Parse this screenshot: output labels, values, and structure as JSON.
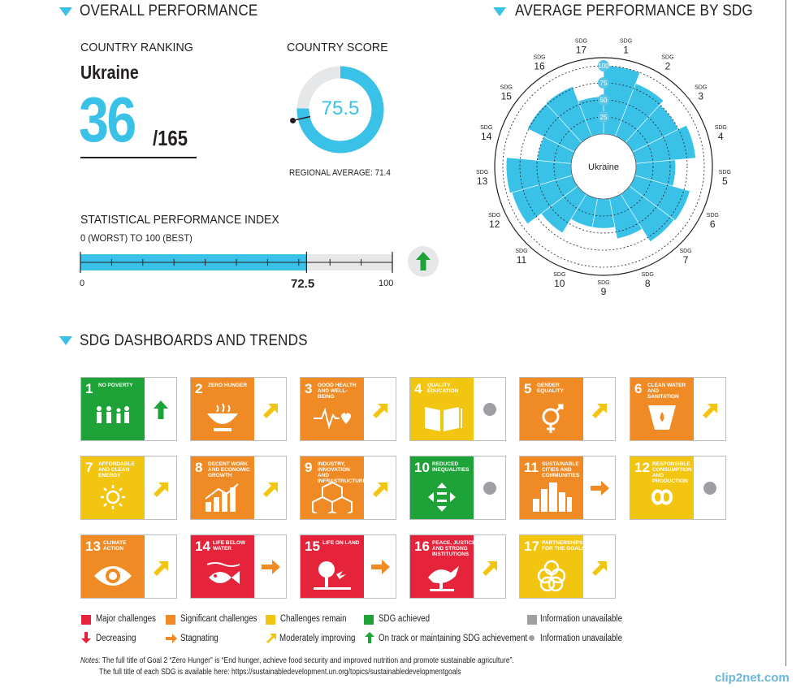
{
  "overall": {
    "title": "OVERALL PERFORMANCE",
    "ranking_label": "COUNTRY RANKING",
    "country": "Ukraine",
    "rank": "36",
    "rank_total": "/165",
    "score_label": "COUNTRY SCORE",
    "score": 75.5,
    "score_text": "75.5",
    "regional_average": "REGIONAL AVERAGE: 71.4",
    "regional_average_value": 71.4
  },
  "spi": {
    "title": "STATISTICAL PERFORMANCE INDEX",
    "subtitle": "0 (WORST) TO 100 (BEST)",
    "value": 72.5,
    "value_text": "72.5",
    "min_label": "0",
    "max_label": "100",
    "trend": "up",
    "trend_color": "#1da338"
  },
  "radial": {
    "title": "AVERAGE PERFORMANCE BY SDG",
    "center_label": "Ukraine",
    "sdg_prefix": "SDG",
    "ring_labels": [
      "25",
      "50",
      "75",
      "100"
    ],
    "bar_color": "#3ac1e8"
  },
  "chart_data": {
    "type": "bar",
    "subtype": "radial",
    "title": "AVERAGE PERFORMANCE BY SDG",
    "categories": [
      "1",
      "2",
      "3",
      "4",
      "5",
      "6",
      "7",
      "8",
      "9",
      "10",
      "11",
      "12",
      "13",
      "14",
      "15",
      "16",
      "17"
    ],
    "values": [
      100,
      83,
      75,
      88,
      58,
      84,
      82,
      60,
      43,
      43,
      67,
      92,
      95,
      50,
      77,
      78,
      55
    ],
    "ylim": [
      0,
      100
    ],
    "center_label": "Ukraine"
  },
  "dashboard": {
    "title": "SDG DASHBOARDS AND TRENDS",
    "tiles": [
      {
        "num": "1",
        "name": "NO POVERTY",
        "color": "#1da338",
        "trend": "up",
        "trend_color": "#1da338"
      },
      {
        "num": "2",
        "name": "ZERO HUNGER",
        "color": "#f08a24",
        "trend": "moderate",
        "trend_color": "#f2c511"
      },
      {
        "num": "3",
        "name": "GOOD HEALTH AND WELL-BEING",
        "color": "#f08a24",
        "trend": "moderate",
        "trend_color": "#f2c511"
      },
      {
        "num": "4",
        "name": "QUALITY EDUCATION",
        "color": "#f2c511",
        "trend": "na",
        "trend_color": "#9d9fa2"
      },
      {
        "num": "5",
        "name": "GENDER EQUALITY",
        "color": "#f08a24",
        "trend": "moderate",
        "trend_color": "#f2c511"
      },
      {
        "num": "6",
        "name": "CLEAN WATER AND SANITATION",
        "color": "#f08a24",
        "trend": "moderate",
        "trend_color": "#f2c511"
      },
      {
        "num": "7",
        "name": "AFFORDABLE AND CLEAN ENERGY",
        "color": "#f2c511",
        "trend": "moderate",
        "trend_color": "#f2c511"
      },
      {
        "num": "8",
        "name": "DECENT WORK AND ECONOMIC GROWTH",
        "color": "#f08a24",
        "trend": "moderate",
        "trend_color": "#f2c511"
      },
      {
        "num": "9",
        "name": "INDUSTRY, INNOVATION AND INFRASTRUCTURE",
        "color": "#f08a24",
        "trend": "moderate",
        "trend_color": "#f2c511"
      },
      {
        "num": "10",
        "name": "REDUCED INEQUALITIES",
        "color": "#1da338",
        "trend": "na",
        "trend_color": "#9d9fa2"
      },
      {
        "num": "11",
        "name": "SUSTAINABLE CITIES AND COMMUNITIES",
        "color": "#f08a24",
        "trend": "stagnating",
        "trend_color": "#f08a24"
      },
      {
        "num": "12",
        "name": "RESPONSIBLE CONSUMPTION AND PRODUCTION",
        "color": "#f2c511",
        "trend": "na",
        "trend_color": "#9d9fa2"
      },
      {
        "num": "13",
        "name": "CLIMATE ACTION",
        "color": "#f08a24",
        "trend": "moderate",
        "trend_color": "#f2c511"
      },
      {
        "num": "14",
        "name": "LIFE BELOW WATER",
        "color": "#e5243b",
        "trend": "stagnating",
        "trend_color": "#f08a24"
      },
      {
        "num": "15",
        "name": "LIFE ON LAND",
        "color": "#e5243b",
        "trend": "stagnating",
        "trend_color": "#f08a24"
      },
      {
        "num": "16",
        "name": "PEACE, JUSTICE AND STRONG INSTITUTIONS",
        "color": "#e5243b",
        "trend": "moderate",
        "trend_color": "#f2c511"
      },
      {
        "num": "17",
        "name": "PARTNERSHIPS FOR THE GOALS",
        "color": "#f2c511",
        "trend": "moderate",
        "trend_color": "#f2c511"
      }
    ]
  },
  "legend": {
    "major": "Major challenges",
    "significant": "Significant challenges",
    "remain": "Challenges remain",
    "achieved": "SDG achieved",
    "unavailable_sq": "Information unavailable",
    "decreasing": "Decreasing",
    "stagnating": "Stagnating",
    "moderate": "Moderately improving",
    "on_track": "On track or maintaining SDG achievement",
    "unavailable_dot": "Information unavailable",
    "colors": {
      "red": "#e5243b",
      "orange": "#f08a24",
      "yellow": "#f2c511",
      "green": "#1da338",
      "grey": "#9d9fa2"
    }
  },
  "notes": {
    "label": "Notes:",
    "line1": " The full title of Goal 2 “Zero Hunger” is “End hunger, achieve food security and improved nutrition and promote sustainable agriculture”.",
    "line2": "The full title of each SDG is available here: https://sustainabledevelopment.un.org/topics/sustainabledevelopmentgoals"
  },
  "watermark": "clip2net.com"
}
